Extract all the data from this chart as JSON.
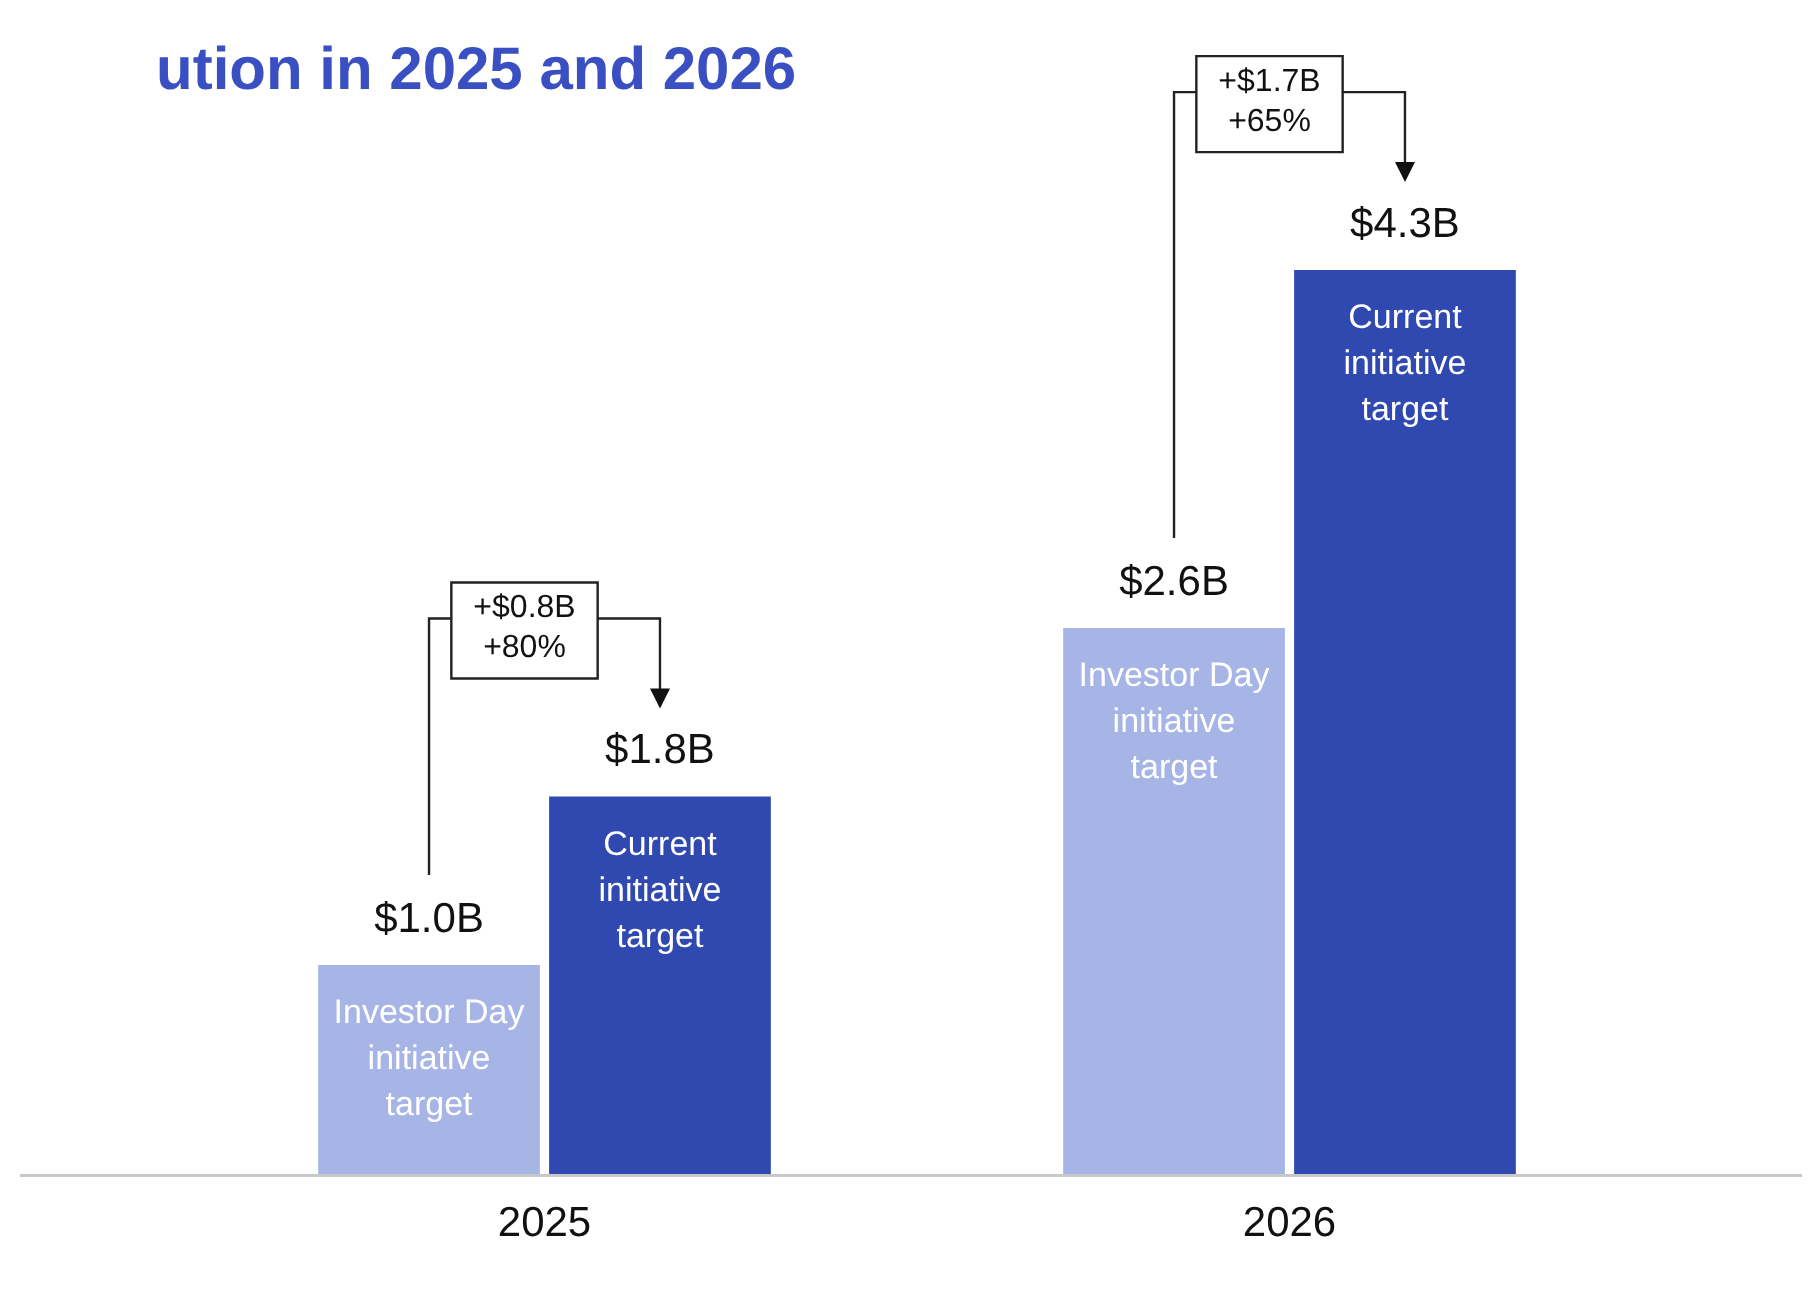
{
  "chart_data": {
    "type": "bar",
    "title": "ution in 2025 and 2026",
    "categories": [
      "2025",
      "2026"
    ],
    "series": [
      {
        "name": "Investor Day initiative target",
        "color": "#a7b5e6",
        "values": [
          1.0,
          2.6
        ],
        "value_labels": [
          "$1.0B",
          "$2.6B"
        ]
      },
      {
        "name": "Current initiative target",
        "color": "#2f49b0",
        "values": [
          1.8,
          4.3
        ],
        "value_labels": [
          "$1.8B",
          "$4.3B"
        ]
      }
    ],
    "relative": false,
    "grid": false,
    "legend": false,
    "annotations": [
      "+$0.8B\n+80%",
      "+$1.7B\n+65%"
    ]
  }
}
